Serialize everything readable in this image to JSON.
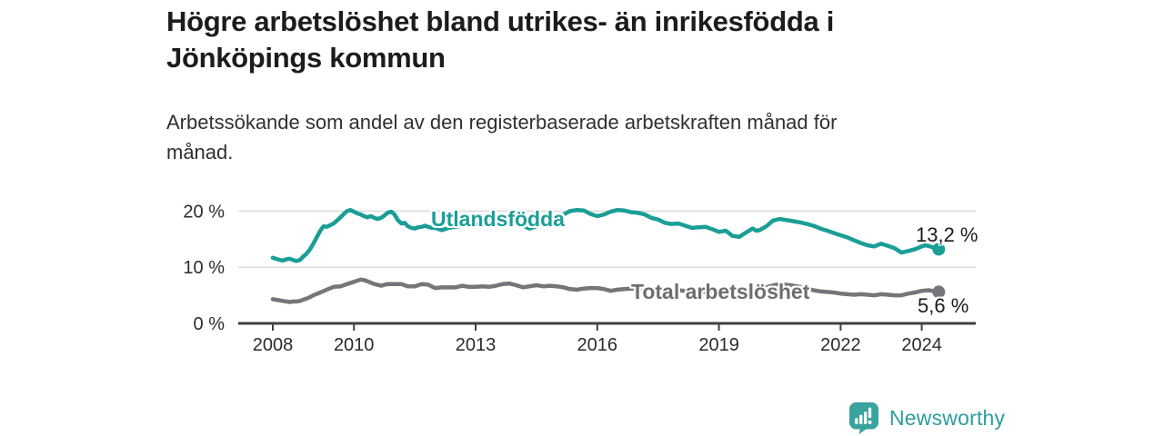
{
  "header": {
    "title_lines": [
      "Högre arbetslöshet bland utrikes- än inrikesfödda i",
      "Jönköpings kommun"
    ],
    "subtitle_lines": [
      "Arbetssökande som andel av den registerbaserade arbetskraften månad för",
      "månad."
    ]
  },
  "chart_data": {
    "type": "line",
    "title": "Högre arbetslöshet bland utrikes- än inrikesfödda i Jönköpings kommun",
    "subtitle": "Arbetssökande som andel av den registerbaserade arbetskraften månad för månad.",
    "unit": "%",
    "grid": true,
    "legend_position": "inline-on-line",
    "x_axis": {
      "range": [
        2007.15,
        2025.33
      ],
      "ticks": [
        {
          "value": 2008,
          "label": "2008"
        },
        {
          "value": 2010,
          "label": "2010"
        },
        {
          "value": 2013,
          "label": "2013"
        },
        {
          "value": 2016,
          "label": "2016"
        },
        {
          "value": 2019,
          "label": "2019"
        },
        {
          "value": 2022,
          "label": "2022"
        },
        {
          "value": 2024,
          "label": "2024"
        }
      ]
    },
    "y_axis": {
      "range": [
        0,
        21.5
      ],
      "ticks": [
        {
          "value": 0,
          "label": "0 %"
        },
        {
          "value": 10,
          "label": "10 %"
        },
        {
          "value": 20,
          "label": "20 %"
        }
      ]
    },
    "series": [
      {
        "name": "Utlandsfödda",
        "color": "#1a9e96",
        "end_label": "13,2 %",
        "end_value": 13.2,
        "points": [
          [
            2008.0,
            11.7
          ],
          [
            2008.08,
            11.5
          ],
          [
            2008.17,
            11.3
          ],
          [
            2008.25,
            11.2
          ],
          [
            2008.33,
            11.4
          ],
          [
            2008.42,
            11.5
          ],
          [
            2008.5,
            11.3
          ],
          [
            2008.58,
            11.1
          ],
          [
            2008.67,
            11.3
          ],
          [
            2008.75,
            11.9
          ],
          [
            2008.83,
            12.4
          ],
          [
            2008.92,
            13.2
          ],
          [
            2009.0,
            14.2
          ],
          [
            2009.08,
            15.3
          ],
          [
            2009.17,
            16.5
          ],
          [
            2009.25,
            17.3
          ],
          [
            2009.33,
            17.2
          ],
          [
            2009.42,
            17.5
          ],
          [
            2009.5,
            17.8
          ],
          [
            2009.58,
            18.3
          ],
          [
            2009.67,
            18.9
          ],
          [
            2009.75,
            19.5
          ],
          [
            2009.83,
            20.0
          ],
          [
            2009.92,
            20.2
          ],
          [
            2010.0,
            19.9
          ],
          [
            2010.08,
            19.6
          ],
          [
            2010.17,
            19.4
          ],
          [
            2010.25,
            19.1
          ],
          [
            2010.33,
            18.9
          ],
          [
            2010.42,
            19.1
          ],
          [
            2010.5,
            18.8
          ],
          [
            2010.58,
            18.6
          ],
          [
            2010.67,
            18.8
          ],
          [
            2010.75,
            19.2
          ],
          [
            2010.83,
            19.7
          ],
          [
            2010.92,
            19.9
          ],
          [
            2011.0,
            19.4
          ],
          [
            2011.08,
            18.4
          ],
          [
            2011.17,
            17.8
          ],
          [
            2011.25,
            17.9
          ],
          [
            2011.33,
            17.3
          ],
          [
            2011.42,
            17.0
          ],
          [
            2011.5,
            16.9
          ],
          [
            2011.58,
            17.1
          ],
          [
            2011.67,
            17.2
          ],
          [
            2011.75,
            17.4
          ],
          [
            2011.83,
            17.2
          ],
          [
            2011.92,
            17.0
          ],
          [
            2012.0,
            17.0
          ],
          [
            2012.17,
            16.6
          ],
          [
            2012.33,
            17.0
          ],
          [
            2012.5,
            17.2
          ],
          [
            2012.67,
            17.4
          ],
          [
            2012.83,
            17.7
          ],
          [
            2013.0,
            17.6
          ],
          [
            2013.17,
            17.9
          ],
          [
            2013.33,
            18.1
          ],
          [
            2013.5,
            17.8
          ],
          [
            2013.67,
            18.0
          ],
          [
            2013.83,
            18.3
          ],
          [
            2014.0,
            18.0
          ],
          [
            2014.17,
            17.4
          ],
          [
            2014.33,
            16.9
          ],
          [
            2014.5,
            17.3
          ],
          [
            2014.67,
            17.8
          ],
          [
            2014.83,
            18.2
          ],
          [
            2015.0,
            18.8
          ],
          [
            2015.17,
            19.4
          ],
          [
            2015.33,
            20.0
          ],
          [
            2015.5,
            20.2
          ],
          [
            2015.67,
            20.1
          ],
          [
            2015.83,
            19.5
          ],
          [
            2016.0,
            19.1
          ],
          [
            2016.17,
            19.4
          ],
          [
            2016.33,
            19.9
          ],
          [
            2016.5,
            20.2
          ],
          [
            2016.67,
            20.1
          ],
          [
            2016.83,
            19.8
          ],
          [
            2017.0,
            19.7
          ],
          [
            2017.17,
            19.4
          ],
          [
            2017.33,
            18.8
          ],
          [
            2017.5,
            18.5
          ],
          [
            2017.67,
            17.9
          ],
          [
            2017.83,
            17.7
          ],
          [
            2018.0,
            17.8
          ],
          [
            2018.17,
            17.4
          ],
          [
            2018.33,
            17.0
          ],
          [
            2018.5,
            17.1
          ],
          [
            2018.67,
            17.2
          ],
          [
            2018.83,
            16.8
          ],
          [
            2019.0,
            16.3
          ],
          [
            2019.17,
            16.5
          ],
          [
            2019.33,
            15.6
          ],
          [
            2019.5,
            15.4
          ],
          [
            2019.67,
            16.2
          ],
          [
            2019.83,
            16.9
          ],
          [
            2019.92,
            16.5
          ],
          [
            2020.0,
            16.6
          ],
          [
            2020.17,
            17.3
          ],
          [
            2020.33,
            18.3
          ],
          [
            2020.5,
            18.6
          ],
          [
            2020.67,
            18.4
          ],
          [
            2020.83,
            18.2
          ],
          [
            2021.0,
            18.0
          ],
          [
            2021.17,
            17.7
          ],
          [
            2021.33,
            17.4
          ],
          [
            2021.5,
            16.9
          ],
          [
            2021.67,
            16.5
          ],
          [
            2021.83,
            16.1
          ],
          [
            2022.0,
            15.7
          ],
          [
            2022.17,
            15.3
          ],
          [
            2022.33,
            14.8
          ],
          [
            2022.5,
            14.3
          ],
          [
            2022.67,
            13.9
          ],
          [
            2022.83,
            13.7
          ],
          [
            2023.0,
            14.2
          ],
          [
            2023.17,
            13.8
          ],
          [
            2023.33,
            13.4
          ],
          [
            2023.5,
            12.6
          ],
          [
            2023.67,
            12.9
          ],
          [
            2023.83,
            13.2
          ],
          [
            2024.0,
            13.7
          ],
          [
            2024.08,
            13.9
          ],
          [
            2024.17,
            13.8
          ],
          [
            2024.25,
            13.6
          ],
          [
            2024.33,
            13.4
          ],
          [
            2024.42,
            13.2
          ]
        ]
      },
      {
        "name": "Total arbetslöshet",
        "color": "#75757a",
        "label_color": "#6d6d72",
        "end_label": "5,6 %",
        "end_value": 5.6,
        "points": [
          [
            2008.0,
            4.3
          ],
          [
            2008.08,
            4.2
          ],
          [
            2008.17,
            4.1
          ],
          [
            2008.25,
            4.0
          ],
          [
            2008.33,
            3.9
          ],
          [
            2008.42,
            3.8
          ],
          [
            2008.5,
            3.9
          ],
          [
            2008.58,
            3.9
          ],
          [
            2008.67,
            4.0
          ],
          [
            2008.75,
            4.2
          ],
          [
            2008.83,
            4.4
          ],
          [
            2008.92,
            4.7
          ],
          [
            2009.0,
            5.0
          ],
          [
            2009.17,
            5.5
          ],
          [
            2009.33,
            6.0
          ],
          [
            2009.5,
            6.5
          ],
          [
            2009.67,
            6.6
          ],
          [
            2009.83,
            7.0
          ],
          [
            2010.0,
            7.4
          ],
          [
            2010.08,
            7.6
          ],
          [
            2010.17,
            7.8
          ],
          [
            2010.25,
            7.7
          ],
          [
            2010.33,
            7.5
          ],
          [
            2010.5,
            7.0
          ],
          [
            2010.67,
            6.7
          ],
          [
            2010.83,
            7.0
          ],
          [
            2011.0,
            7.0
          ],
          [
            2011.17,
            7.0
          ],
          [
            2011.33,
            6.6
          ],
          [
            2011.5,
            6.6
          ],
          [
            2011.67,
            7.0
          ],
          [
            2011.83,
            6.9
          ],
          [
            2012.0,
            6.3
          ],
          [
            2012.17,
            6.4
          ],
          [
            2012.33,
            6.4
          ],
          [
            2012.5,
            6.4
          ],
          [
            2012.67,
            6.7
          ],
          [
            2012.83,
            6.5
          ],
          [
            2013.0,
            6.5
          ],
          [
            2013.17,
            6.6
          ],
          [
            2013.33,
            6.5
          ],
          [
            2013.5,
            6.7
          ],
          [
            2013.67,
            7.0
          ],
          [
            2013.83,
            7.1
          ],
          [
            2014.0,
            6.8
          ],
          [
            2014.17,
            6.4
          ],
          [
            2014.33,
            6.6
          ],
          [
            2014.5,
            6.8
          ],
          [
            2014.67,
            6.6
          ],
          [
            2014.83,
            6.7
          ],
          [
            2015.0,
            6.6
          ],
          [
            2015.17,
            6.4
          ],
          [
            2015.33,
            6.1
          ],
          [
            2015.5,
            6.0
          ],
          [
            2015.67,
            6.2
          ],
          [
            2015.83,
            6.3
          ],
          [
            2016.0,
            6.3
          ],
          [
            2016.17,
            6.1
          ],
          [
            2016.33,
            5.8
          ],
          [
            2016.5,
            6.0
          ],
          [
            2016.67,
            6.1
          ],
          [
            2016.83,
            6.2
          ],
          [
            2017.0,
            6.3
          ],
          [
            2017.25,
            6.2
          ],
          [
            2017.5,
            6.0
          ],
          [
            2017.75,
            5.9
          ],
          [
            2018.0,
            5.9
          ],
          [
            2018.25,
            5.7
          ],
          [
            2018.5,
            5.6
          ],
          [
            2018.75,
            5.6
          ],
          [
            2019.0,
            5.7
          ],
          [
            2019.25,
            5.6
          ],
          [
            2019.5,
            5.7
          ],
          [
            2019.75,
            5.9
          ],
          [
            2020.0,
            6.0
          ],
          [
            2020.25,
            6.6
          ],
          [
            2020.5,
            7.0
          ],
          [
            2020.75,
            6.8
          ],
          [
            2021.0,
            6.5
          ],
          [
            2021.17,
            6.2
          ],
          [
            2021.33,
            5.9
          ],
          [
            2021.5,
            5.7
          ],
          [
            2021.67,
            5.6
          ],
          [
            2021.83,
            5.5
          ],
          [
            2022.0,
            5.3
          ],
          [
            2022.17,
            5.2
          ],
          [
            2022.33,
            5.1
          ],
          [
            2022.5,
            5.2
          ],
          [
            2022.67,
            5.1
          ],
          [
            2022.83,
            5.0
          ],
          [
            2023.0,
            5.2
          ],
          [
            2023.17,
            5.1
          ],
          [
            2023.33,
            5.0
          ],
          [
            2023.5,
            5.0
          ],
          [
            2023.67,
            5.3
          ],
          [
            2023.83,
            5.5
          ],
          [
            2024.0,
            5.8
          ],
          [
            2024.17,
            5.9
          ],
          [
            2024.33,
            5.7
          ],
          [
            2024.42,
            5.6
          ]
        ]
      }
    ],
    "colors": {
      "axis": "#404040",
      "gridline": "#dcdcdc",
      "tick_text": "#2b2b2b",
      "end_label_text": "#1b1b1b"
    }
  },
  "branding": {
    "name": "Newsworthy",
    "color": "#2d9d9d",
    "icon": "bar-chart-bubble-icon",
    "icon_color": "#3aa3a0"
  }
}
